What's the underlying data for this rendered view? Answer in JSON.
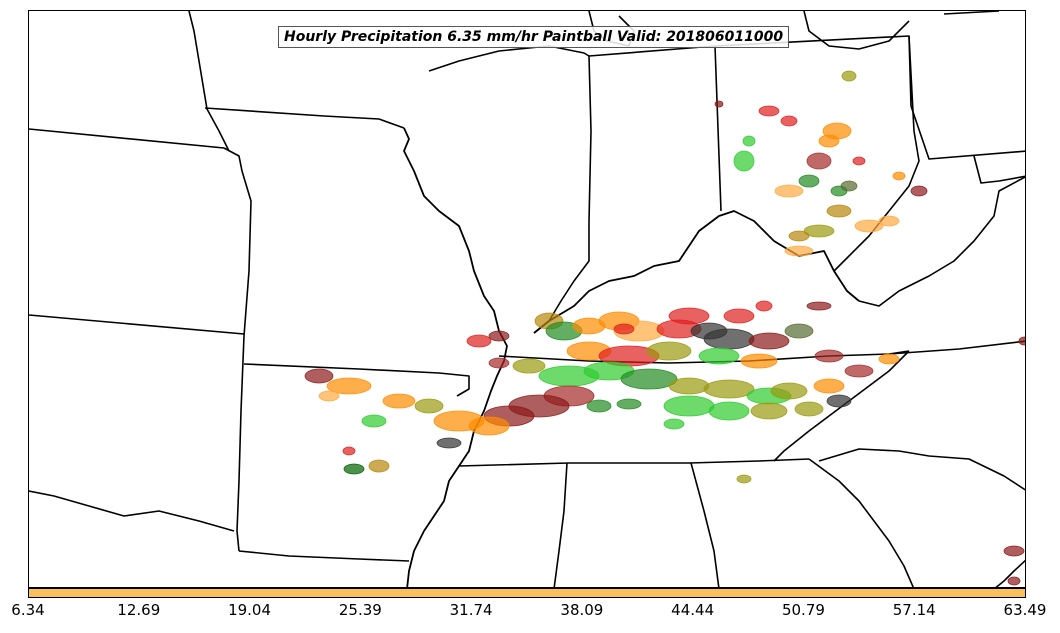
{
  "title": "Hourly Precipitation 6.35 mm/hr Paintball Valid: 201806011000",
  "colorbar": {
    "color": "#fbbf5e",
    "ticks": [
      "6.34",
      "12.69",
      "19.04",
      "25.39",
      "31.74",
      "38.09",
      "44.44",
      "50.79",
      "57.14",
      "63.49"
    ]
  },
  "member_colors": [
    "#e02020",
    "#ff8c00",
    "#ffa940",
    "#8b1a1a",
    "#a52a2a",
    "#9a9a10",
    "#228b22",
    "#2ecc2e",
    "#006400",
    "#333333",
    "#b8860b",
    "#556b2f"
  ]
}
